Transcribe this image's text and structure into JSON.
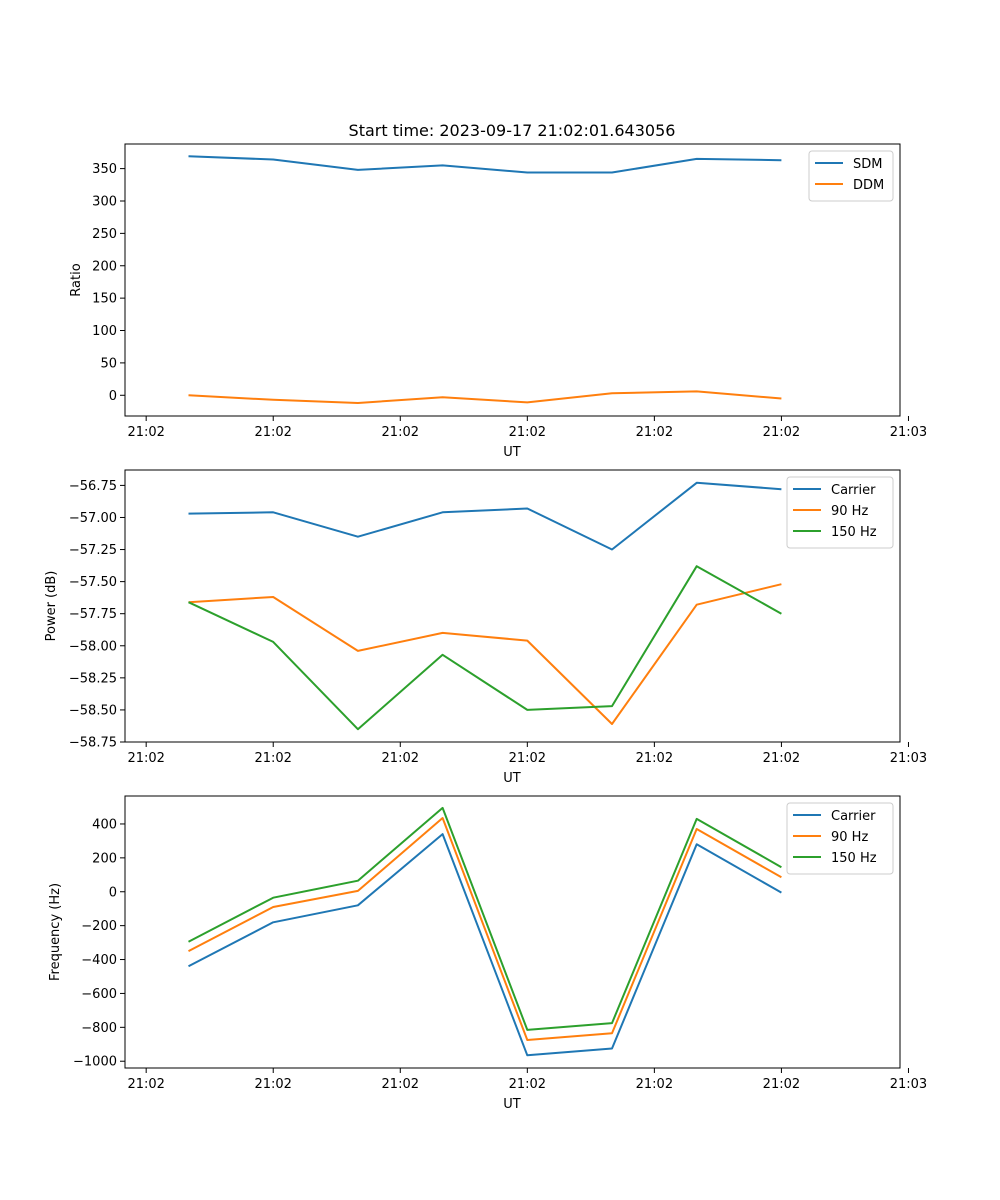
{
  "chart_data": [
    {
      "type": "line",
      "title": "Start time: 2023-09-17 21:02:01.643056",
      "xlabel": "UT",
      "ylabel": "Ratio",
      "x": [
        1,
        2,
        3,
        4,
        5,
        6,
        7,
        8
      ],
      "xlim": [
        0.25,
        9.4
      ],
      "x_ticks": [
        0.5,
        2,
        3.5,
        5,
        6.5,
        8,
        9.5
      ],
      "x_tick_labels": [
        "21:02",
        "21:02",
        "21:02",
        "21:02",
        "21:02",
        "21:02",
        "21:03"
      ],
      "ylim": [
        -32,
        388
      ],
      "y_ticks": [
        0,
        50,
        100,
        150,
        200,
        250,
        300,
        350
      ],
      "y_tick_labels": [
        "0",
        "50",
        "100",
        "150",
        "200",
        "250",
        "300",
        "350"
      ],
      "legend_position": "top-right",
      "series": [
        {
          "name": "SDM",
          "color": "#1f77b4",
          "values": [
            369,
            364,
            348,
            355,
            344,
            344,
            365,
            363
          ]
        },
        {
          "name": "DDM",
          "color": "#ff7f0e",
          "values": [
            0,
            -7,
            -12,
            -3,
            -11,
            3,
            6,
            -5
          ]
        }
      ]
    },
    {
      "type": "line",
      "title": "",
      "xlabel": "UT",
      "ylabel": "Power (dB)",
      "x": [
        1,
        2,
        3,
        4,
        5,
        6,
        7,
        8
      ],
      "xlim": [
        0.25,
        9.4
      ],
      "x_ticks": [
        0.5,
        2,
        3.5,
        5,
        6.5,
        8,
        9.5
      ],
      "x_tick_labels": [
        "21:02",
        "21:02",
        "21:02",
        "21:02",
        "21:02",
        "21:02",
        "21:03"
      ],
      "ylim": [
        -58.75,
        -56.63
      ],
      "y_ticks": [
        -58.75,
        -58.5,
        -58.25,
        -58.0,
        -57.75,
        -57.5,
        -57.25,
        -57.0,
        -56.75
      ],
      "y_tick_labels": [
        "−58.75",
        "−58.50",
        "−58.25",
        "−58.00",
        "−57.75",
        "−57.50",
        "−57.25",
        "−57.00",
        "−56.75"
      ],
      "legend_position": "top-right",
      "series": [
        {
          "name": "Carrier",
          "color": "#1f77b4",
          "values": [
            -56.97,
            -56.96,
            -57.15,
            -56.96,
            -56.93,
            -57.25,
            -56.73,
            -56.78
          ]
        },
        {
          "name": "90 Hz",
          "color": "#ff7f0e",
          "values": [
            -57.66,
            -57.62,
            -58.04,
            -57.9,
            -57.96,
            -58.61,
            -57.68,
            -57.52
          ]
        },
        {
          "name": "150 Hz",
          "color": "#2ca02c",
          "values": [
            -57.66,
            -57.97,
            -58.65,
            -58.07,
            -58.5,
            -58.47,
            -57.38,
            -57.75
          ]
        }
      ]
    },
    {
      "type": "line",
      "title": "",
      "xlabel": "UT",
      "ylabel": "Frequency (Hz)",
      "x": [
        1,
        2,
        3,
        4,
        5,
        6,
        7,
        8
      ],
      "xlim": [
        0.25,
        9.4
      ],
      "x_ticks": [
        0.5,
        2,
        3.5,
        5,
        6.5,
        8,
        9.5
      ],
      "x_tick_labels": [
        "21:02",
        "21:02",
        "21:02",
        "21:02",
        "21:02",
        "21:02",
        "21:03"
      ],
      "ylim": [
        -1040,
        565
      ],
      "y_ticks": [
        -1000,
        -800,
        -600,
        -400,
        -200,
        0,
        200,
        400
      ],
      "y_tick_labels": [
        "−1000",
        "−800",
        "−600",
        "−400",
        "−200",
        "0",
        "200",
        "400"
      ],
      "legend_position": "top-right",
      "series": [
        {
          "name": "Carrier",
          "color": "#1f77b4",
          "values": [
            -440,
            -180,
            -80,
            340,
            -965,
            -925,
            280,
            -5
          ]
        },
        {
          "name": "90 Hz",
          "color": "#ff7f0e",
          "values": [
            -350,
            -90,
            5,
            435,
            -875,
            -835,
            370,
            85
          ]
        },
        {
          "name": "150 Hz",
          "color": "#2ca02c",
          "values": [
            -295,
            -35,
            65,
            495,
            -815,
            -775,
            430,
            145
          ]
        }
      ]
    }
  ]
}
